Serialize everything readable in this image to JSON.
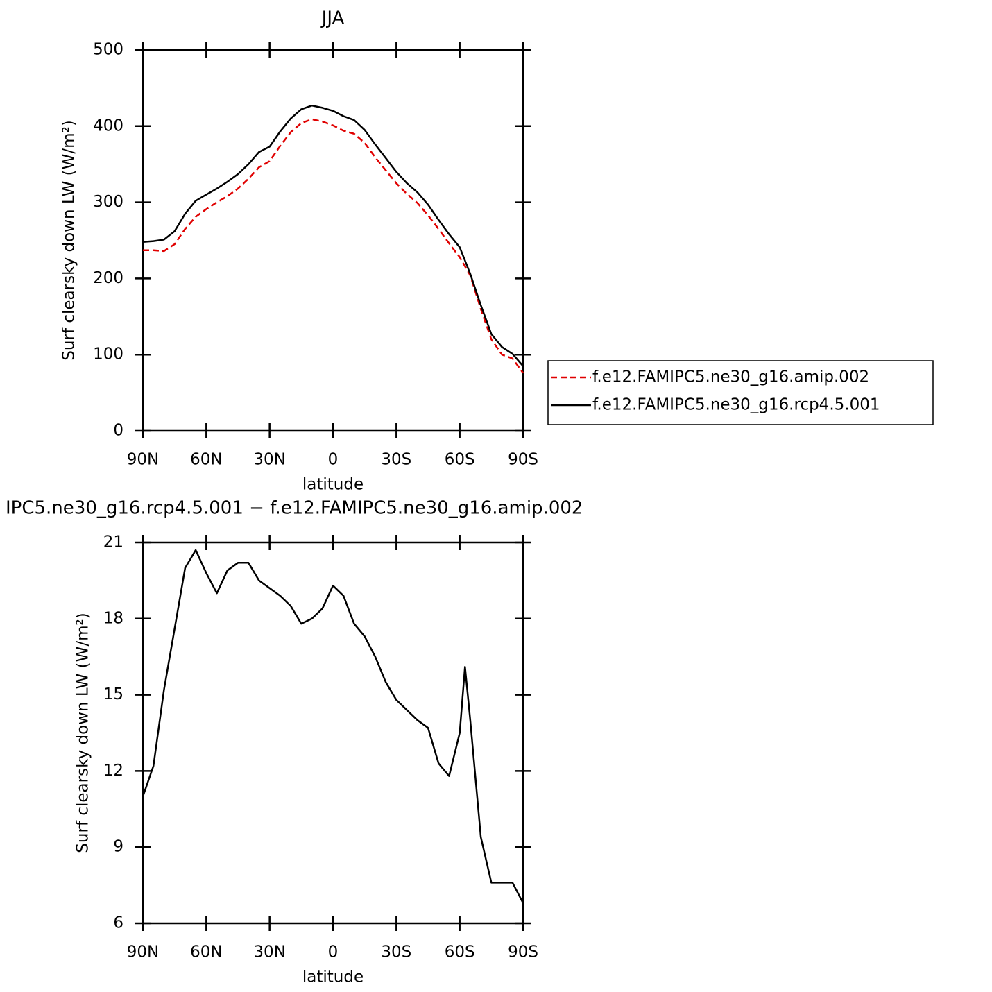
{
  "chart_data": [
    {
      "type": "line",
      "title": "JJA",
      "x_label": "latitude",
      "y_label": "Surf clearsky down LW (W/m²)",
      "x": [
        90,
        85,
        80,
        75,
        70,
        65,
        60,
        55,
        50,
        45,
        40,
        35,
        30,
        25,
        20,
        15,
        10,
        5,
        0,
        -5,
        -10,
        -15,
        -20,
        -25,
        -30,
        -35,
        -40,
        -45,
        -50,
        -55,
        -60,
        -65,
        -70,
        -75,
        -80,
        -85,
        -90
      ],
      "series": [
        {
          "name": "f.e12.FAMIPC5.ne30_g16.amip.002",
          "color": "#e00000",
          "line_style": "dashed",
          "values": [
            237,
            237,
            236,
            245,
            265,
            281,
            291,
            300,
            308,
            318,
            331,
            346,
            354,
            374,
            392,
            404,
            409,
            406,
            401,
            394,
            390,
            378,
            359,
            342,
            325,
            311,
            299,
            283,
            265,
            246,
            228,
            204,
            160,
            120,
            100,
            95,
            76
          ]
        },
        {
          "name": "f.e12.FAMIPC5.ne30_g16.rcp4.5.001",
          "color": "#000000",
          "line_style": "solid",
          "values": [
            248,
            249,
            251,
            262,
            285,
            302,
            310,
            318,
            327,
            337,
            350,
            366,
            373,
            393,
            410,
            422,
            427,
            424,
            420,
            413,
            408,
            395,
            376,
            358,
            340,
            325,
            313,
            297,
            277,
            258,
            241,
            206,
            165,
            127,
            110,
            101,
            85
          ]
        }
      ],
      "xlim": [
        90,
        -90
      ],
      "xticks": [
        {
          "value": 90,
          "label": "90N"
        },
        {
          "value": 60,
          "label": "60N"
        },
        {
          "value": 30,
          "label": "30N"
        },
        0,
        {
          "value": -30,
          "label": "30S"
        },
        {
          "value": -60,
          "label": "60S"
        },
        {
          "value": -90,
          "label": "90S"
        }
      ],
      "ylim": [
        0,
        500
      ],
      "yticks": [
        0,
        100,
        200,
        300,
        400,
        500
      ],
      "legend": "right"
    },
    {
      "type": "line",
      "title": "IPC5.ne30_g16.rcp4.5.001 − f.e12.FAMIPC5.ne30_g16.amip.002",
      "x_label": "latitude",
      "y_label": "Surf clearsky down LW (W/m²)",
      "x": [
        90,
        85,
        80,
        75,
        70,
        65,
        60,
        55,
        50,
        45,
        40,
        35,
        30,
        25,
        20,
        15,
        10,
        5,
        0,
        -5,
        -10,
        -15,
        -20,
        -25,
        -30,
        -35,
        -40,
        -45,
        -50,
        -55,
        -60,
        -62.5,
        -65,
        -70,
        -75,
        -80,
        -85,
        -90
      ],
      "series": [
        {
          "color": "#000000",
          "line_style": "solid",
          "values": [
            11.0,
            12.2,
            15.2,
            17.6,
            20.0,
            20.7,
            19.8,
            19.0,
            19.9,
            20.2,
            20.2,
            19.5,
            19.2,
            18.9,
            18.5,
            17.8,
            18.0,
            18.4,
            19.3,
            18.9,
            17.8,
            17.3,
            16.5,
            15.5,
            14.8,
            14.4,
            14.0,
            13.7,
            12.3,
            11.8,
            13.5,
            16.1,
            14.0,
            9.4,
            7.6,
            7.6,
            7.6,
            6.8
          ]
        }
      ],
      "xlim": [
        90,
        -90
      ],
      "xticks": [
        {
          "value": 90,
          "label": "90N"
        },
        {
          "value": 60,
          "label": "60N"
        },
        {
          "value": 30,
          "label": "30N"
        },
        0,
        {
          "value": -30,
          "label": "30S"
        },
        {
          "value": -60,
          "label": "60S"
        },
        {
          "value": -90,
          "label": "90S"
        }
      ],
      "ylim": [
        6,
        21
      ],
      "yticks": [
        6,
        9,
        12,
        15,
        18,
        21
      ]
    }
  ]
}
